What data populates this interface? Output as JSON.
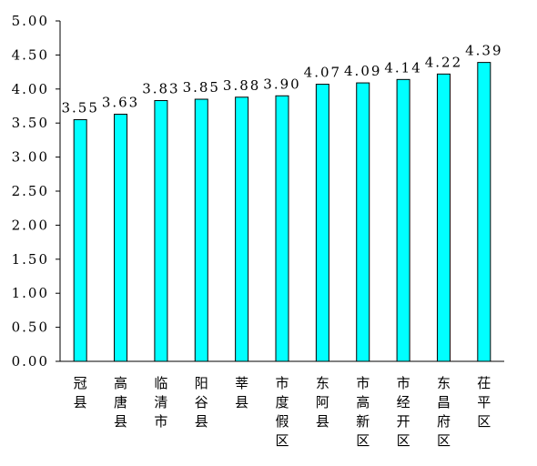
{
  "chart_data": {
    "type": "bar",
    "title": "",
    "xlabel": "",
    "ylabel": "",
    "categories": [
      "冠县",
      "高唐县",
      "临清市",
      "阳谷县",
      "莘县",
      "市度假区",
      "东阿县",
      "市高新区",
      "市经开区",
      "东昌府区",
      "茌平区"
    ],
    "values": [
      3.55,
      3.63,
      3.83,
      3.85,
      3.88,
      3.9,
      4.07,
      4.09,
      4.14,
      4.22,
      4.39
    ],
    "value_labels": [
      "3.55",
      "3.63",
      "3.83",
      "3.85",
      "3.88",
      "3.90",
      "4.07",
      "4.09",
      "4.14",
      "4.22",
      "4.39"
    ],
    "ylim": [
      0,
      5
    ],
    "yticks": [
      0,
      0.5,
      1,
      1.5,
      2,
      2.5,
      3,
      3.5,
      4,
      4.5,
      5
    ],
    "ytick_labels": [
      "0.00",
      "0.50",
      "1.00",
      "1.50",
      "2.00",
      "2.50",
      "3.00",
      "3.50",
      "4.00",
      "4.50",
      "5.00"
    ],
    "grid": false,
    "legend": "none",
    "colors": {
      "bar_fill": "#00FFFF",
      "bar_stroke": "#000000",
      "axis": "#000000",
      "text": "#000000"
    }
  }
}
